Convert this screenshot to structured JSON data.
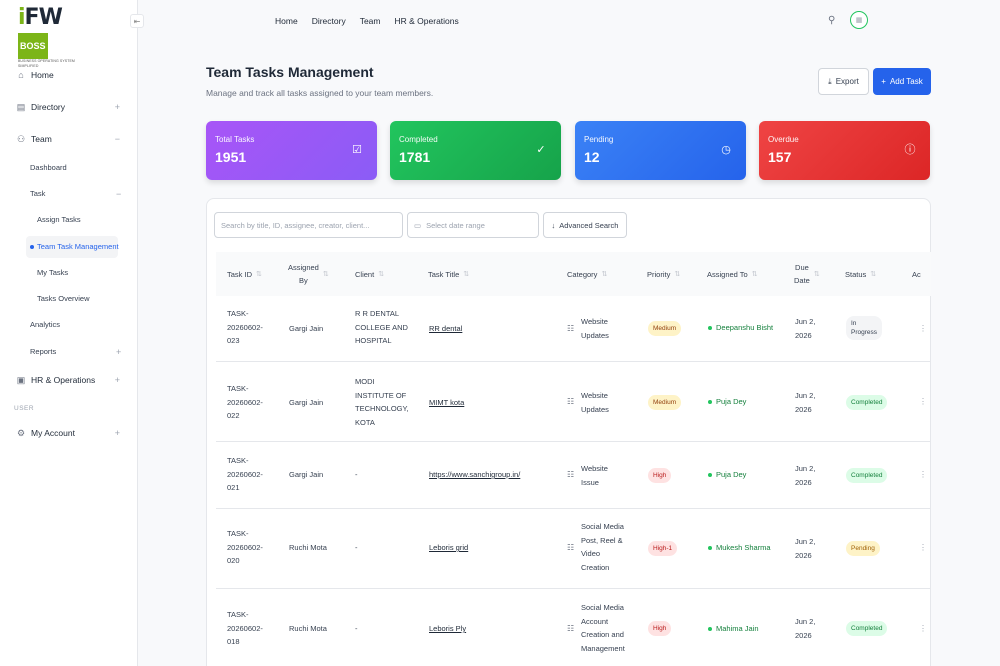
{
  "brand": {
    "logo_i": "i",
    "logo_fw": "FW",
    "logo_boss": "BOSS",
    "tagline": "BUSINESS OPERATING SYSTEM SIMPLIFIED",
    "accent": "#7cb518"
  },
  "sidebar": {
    "items": [
      {
        "label": "Home"
      },
      {
        "label": "Directory"
      },
      {
        "label": "Team"
      },
      {
        "label": "HR & Operations"
      },
      {
        "label": "My Account"
      }
    ],
    "team_sub": [
      "Dashboard",
      "Task",
      "Analytics",
      "Reports"
    ],
    "task_sub": [
      "Assign Tasks",
      "Team Task Management",
      "My Tasks",
      "Tasks Overview"
    ],
    "section_user": "USER"
  },
  "topnav": [
    "Home",
    "Directory",
    "Team",
    "HR & Operations"
  ],
  "header": {
    "title": "Team Tasks Management",
    "subtitle": "Manage and track all tasks assigned to your team members.",
    "export_label": "Export",
    "add_label": "Add Task"
  },
  "stats": [
    {
      "label": "Total Tasks",
      "value": "1951",
      "color": "#8b5cf6"
    },
    {
      "label": "Completed",
      "value": "1781",
      "color": "#16a34a"
    },
    {
      "label": "Pending",
      "value": "12",
      "color": "#2563eb"
    },
    {
      "label": "Overdue",
      "value": "157",
      "color": "#dc2626"
    }
  ],
  "filters": {
    "search_placeholder": "Search by title, ID, assignee, creator, client...",
    "date_placeholder": "Select date range",
    "advanced_label": "Advanced Search"
  },
  "table": {
    "headers": [
      "Task ID",
      "Assigned By",
      "Client",
      "Task Title",
      "Category",
      "Priority",
      "Assigned To",
      "Due Date",
      "Status",
      "Ac"
    ],
    "rows": [
      {
        "id": [
          "TASK-",
          "20260602-",
          "023"
        ],
        "by": "Gargi Jain",
        "client": [
          "R R DENTAL",
          "COLLEGE AND",
          "HOSPITAL"
        ],
        "title": "RR dental",
        "category": [
          "Website",
          "Updates"
        ],
        "priority": "Medium",
        "assignee": "Deepanshu Bisht",
        "due": [
          "Jun 2,",
          "2026"
        ],
        "status": [
          "In",
          "Progress"
        ]
      },
      {
        "id": [
          "TASK-",
          "20260602-",
          "022"
        ],
        "by": "Gargi Jain",
        "client": [
          "MODI",
          "INSTITUTE OF",
          "TECHNOLOGY,",
          "KOTA"
        ],
        "title": "MIMT kota",
        "category": [
          "Website",
          "Updates"
        ],
        "priority": "Medium",
        "assignee": "Puja Dey",
        "due": [
          "Jun 2,",
          "2026"
        ],
        "status": [
          "Completed"
        ]
      },
      {
        "id": [
          "TASK-",
          "20260602-",
          "021"
        ],
        "by": "Gargi Jain",
        "client": [
          "-"
        ],
        "title": "https://www.sanchigroup.in/",
        "category": [
          "Website",
          "Issue"
        ],
        "priority": "High",
        "assignee": "Puja Dey",
        "due": [
          "Jun 2,",
          "2026"
        ],
        "status": [
          "Completed"
        ]
      },
      {
        "id": [
          "TASK-",
          "20260602-",
          "020"
        ],
        "by": "Ruchi Mota",
        "client": [
          "-"
        ],
        "title": "Leboris grid",
        "category": [
          "Social Media",
          "Post, Reel &",
          "Video",
          "Creation"
        ],
        "priority": "High-1",
        "assignee": "Mukesh Sharma",
        "due": [
          "Jun 2,",
          "2026"
        ],
        "status": [
          "Pending"
        ]
      },
      {
        "id": [
          "TASK-",
          "20260602-",
          "018"
        ],
        "by": "Ruchi Mota",
        "client": [
          "-"
        ],
        "title": "Leboris Ply",
        "category": [
          "Social Media",
          "Account",
          "Creation and",
          "Management"
        ],
        "priority": "High",
        "assignee": "Mahima Jain",
        "due": [
          "Jun 2,",
          "2026"
        ],
        "status": [
          "Completed"
        ]
      }
    ]
  }
}
